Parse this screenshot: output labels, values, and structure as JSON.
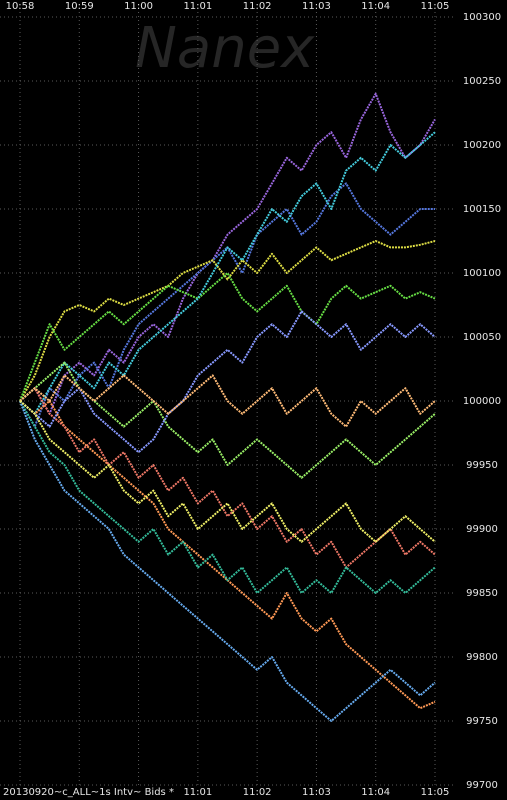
{
  "chart_data": {
    "type": "line",
    "watermark": "Nanex",
    "footer": "20130920~c_ALL~1s Intv~ Bids *",
    "categories": [
      "10:58",
      null,
      null,
      null,
      "10:59",
      null,
      null,
      null,
      "11:00",
      null,
      null,
      null,
      "11:01",
      null,
      null,
      null,
      "11:02",
      null,
      null,
      null,
      "11:03",
      null,
      null,
      null,
      "11:04",
      null,
      null,
      null,
      "11:05"
    ],
    "ylim": [
      99700,
      100300
    ],
    "yticks": [
      99700,
      99750,
      99800,
      99850,
      99900,
      99950,
      100000,
      100050,
      100100,
      100150,
      100200,
      100250,
      100300
    ],
    "grid": true,
    "series": [
      {
        "color": "#9966dd",
        "values": [
          100000,
          100010,
          99990,
          100020,
          100030,
          100020,
          100040,
          100030,
          100050,
          100060,
          100050,
          100080,
          100100,
          100110,
          100130,
          100140,
          100150,
          100170,
          100190,
          100180,
          100200,
          100210,
          100190,
          100220,
          100240,
          100210,
          100190,
          100200,
          100220
        ]
      },
      {
        "color": "#5577dd",
        "values": [
          100000,
          99980,
          100010,
          100000,
          100020,
          100030,
          100010,
          100040,
          100060,
          100070,
          100080,
          100090,
          100100,
          100110,
          100120,
          100100,
          100130,
          100140,
          100150,
          100130,
          100140,
          100160,
          100170,
          100150,
          100140,
          100130,
          100140,
          100150,
          100150
        ]
      },
      {
        "color": "#dddd44",
        "values": [
          100000,
          100020,
          100050,
          100070,
          100075,
          100070,
          100080,
          100075,
          100080,
          100085,
          100090,
          100100,
          100105,
          100110,
          100095,
          100110,
          100100,
          100115,
          100100,
          100110,
          100120,
          100110,
          100115,
          100120,
          100125,
          100120,
          100120,
          100122,
          100125
        ]
      },
      {
        "color": "#66dd44",
        "values": [
          100000,
          100030,
          100060,
          100040,
          100050,
          100060,
          100070,
          100060,
          100070,
          100080,
          100090,
          100085,
          100080,
          100090,
          100100,
          100080,
          100070,
          100080,
          100090,
          100070,
          100060,
          100080,
          100090,
          100080,
          100085,
          100090,
          100080,
          100085,
          100080
        ]
      },
      {
        "color": "#44ccdd",
        "values": [
          100000,
          99990,
          100010,
          100030,
          100020,
          100010,
          100030,
          100020,
          100040,
          100050,
          100060,
          100070,
          100080,
          100100,
          100120,
          100110,
          100130,
          100150,
          100140,
          100160,
          100170,
          100150,
          100180,
          100190,
          100180,
          100200,
          100190,
          100200,
          100210
        ]
      },
      {
        "color": "#ff9955",
        "values": [
          100000,
          99990,
          100000,
          99980,
          99970,
          99960,
          99950,
          99940,
          99930,
          99920,
          99900,
          99890,
          99880,
          99870,
          99860,
          99850,
          99840,
          99830,
          99850,
          99830,
          99820,
          99830,
          99810,
          99800,
          99790,
          99780,
          99770,
          99760,
          99765
        ]
      },
      {
        "color": "#ee7766",
        "values": [
          100000,
          100010,
          99990,
          99980,
          99960,
          99970,
          99950,
          99960,
          99940,
          99950,
          99930,
          99940,
          99920,
          99930,
          99910,
          99920,
          99900,
          99910,
          99890,
          99900,
          99880,
          99890,
          99870,
          99880,
          99890,
          99900,
          99880,
          99890,
          99880
        ]
      },
      {
        "color": "#33bb99",
        "values": [
          100000,
          99980,
          99960,
          99950,
          99930,
          99920,
          99910,
          99900,
          99890,
          99900,
          99880,
          99890,
          99870,
          99880,
          99860,
          99870,
          99850,
          99860,
          99870,
          99850,
          99860,
          99850,
          99870,
          99860,
          99850,
          99860,
          99850,
          99860,
          99870
        ]
      },
      {
        "color": "#66aaee",
        "values": [
          100000,
          99970,
          99950,
          99930,
          99920,
          99910,
          99900,
          99880,
          99870,
          99860,
          99850,
          99840,
          99830,
          99820,
          99810,
          99800,
          99790,
          99800,
          99780,
          99770,
          99760,
          99750,
          99760,
          99770,
          99780,
          99790,
          99780,
          99770,
          99780
        ]
      },
      {
        "color": "#99ee66",
        "values": [
          100000,
          100010,
          100020,
          100030,
          100010,
          100000,
          99990,
          99980,
          99990,
          100000,
          99980,
          99970,
          99960,
          99970,
          99950,
          99960,
          99970,
          99960,
          99950,
          99940,
          99950,
          99960,
          99970,
          99960,
          99950,
          99960,
          99970,
          99980,
          99990
        ]
      },
      {
        "color": "#8899ff",
        "values": [
          100000,
          99990,
          99980,
          100000,
          100010,
          99990,
          99980,
          99970,
          99960,
          99970,
          99990,
          100000,
          100020,
          100030,
          100040,
          100030,
          100050,
          100060,
          100050,
          100070,
          100060,
          100050,
          100060,
          100040,
          100050,
          100060,
          100050,
          100060,
          100050
        ]
      },
      {
        "color": "#ffbb77",
        "values": [
          100000,
          100010,
          100000,
          100020,
          100010,
          100000,
          100010,
          100020,
          100010,
          100000,
          99990,
          100000,
          100010,
          100020,
          100000,
          99990,
          100000,
          100010,
          99990,
          100000,
          100010,
          99990,
          99980,
          100000,
          99990,
          100000,
          100010,
          99990,
          100000
        ]
      },
      {
        "color": "#eeee66",
        "values": [
          100000,
          99990,
          99970,
          99960,
          99950,
          99940,
          99950,
          99930,
          99920,
          99930,
          99910,
          99920,
          99900,
          99910,
          99920,
          99900,
          99910,
          99920,
          99900,
          99890,
          99900,
          99910,
          99920,
          99900,
          99890,
          99900,
          99910,
          99900,
          99890
        ]
      }
    ]
  }
}
